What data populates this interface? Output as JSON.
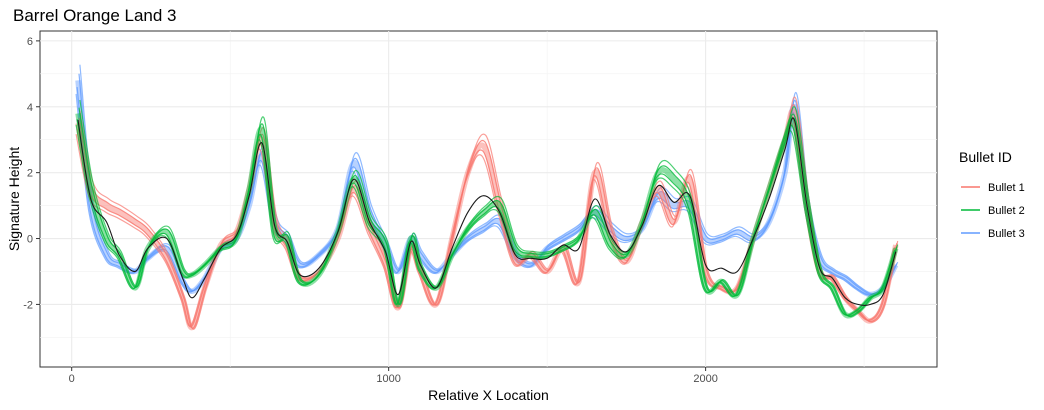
{
  "chart_data": {
    "type": "line",
    "title": "Barrel Orange Land 3",
    "xlabel": "Relative X Location",
    "ylabel": "Signature Height",
    "xlim": [
      -100,
      2730
    ],
    "ylim": [
      -3.9,
      6.3
    ],
    "x_ticks": [
      0,
      1000,
      2000
    ],
    "x_tick_labels": [
      "0",
      "1000",
      "2000"
    ],
    "y_ticks": [
      -2,
      0,
      2,
      4,
      6
    ],
    "y_tick_labels": [
      "-2",
      "0",
      "2",
      "4",
      "6"
    ],
    "grid": true,
    "legend": {
      "title": "Bullet ID",
      "position": "right"
    },
    "series": [
      {
        "name": "Bullet 1",
        "color": "#F8766D",
        "x": [
          20,
          60,
          110,
          150,
          200,
          240,
          300,
          350,
          380,
          420,
          470,
          520,
          560,
          600,
          640,
          680,
          720,
          780,
          840,
          890,
          940,
          990,
          1030,
          1070,
          1100,
          1150,
          1200,
          1250,
          1300,
          1350,
          1400,
          1450,
          1500,
          1550,
          1600,
          1650,
          1700,
          1750,
          1800,
          1850,
          1900,
          1950,
          2000,
          2050,
          2100,
          2150,
          2200,
          2250,
          2280,
          2320,
          2360,
          2400,
          2440,
          2480,
          2520,
          2560,
          2600
        ],
        "values": [
          3.5,
          1.5,
          1.0,
          0.8,
          0.5,
          0.2,
          -0.6,
          -1.8,
          -2.7,
          -1.5,
          -0.2,
          0.2,
          1.5,
          3.0,
          0.5,
          -0.2,
          -1.2,
          -1.0,
          0.0,
          1.5,
          0.3,
          -0.8,
          -2.1,
          -0.3,
          -1.0,
          -2.0,
          0.0,
          2.0,
          2.8,
          1.0,
          -0.7,
          -0.5,
          -1.0,
          -0.3,
          -1.3,
          2.0,
          0.2,
          -0.7,
          0.5,
          1.5,
          0.5,
          1.8,
          -1.0,
          -1.5,
          -1.5,
          0.0,
          1.5,
          3.0,
          3.8,
          1.0,
          -1.0,
          -1.2,
          -1.8,
          -2.2,
          -2.5,
          -2.0,
          -0.2
        ]
      },
      {
        "name": "Bullet 2",
        "color": "#00BA38",
        "x": [
          20,
          60,
          110,
          150,
          200,
          240,
          300,
          350,
          380,
          420,
          470,
          520,
          560,
          600,
          640,
          680,
          720,
          780,
          840,
          890,
          940,
          990,
          1030,
          1070,
          1100,
          1150,
          1200,
          1250,
          1300,
          1350,
          1400,
          1450,
          1500,
          1550,
          1600,
          1650,
          1700,
          1750,
          1800,
          1850,
          1900,
          1950,
          2000,
          2050,
          2100,
          2150,
          2200,
          2250,
          2280,
          2320,
          2360,
          2400,
          2440,
          2480,
          2520,
          2560,
          2600
        ],
        "values": [
          3.8,
          1.5,
          0.0,
          -0.5,
          -1.5,
          -0.3,
          0.2,
          -1.0,
          -1.1,
          -0.8,
          -0.3,
          0.0,
          1.5,
          3.3,
          0.2,
          0.0,
          -1.3,
          -1.1,
          0.2,
          1.8,
          0.5,
          -0.2,
          -2.0,
          0.0,
          -0.9,
          -1.5,
          -0.5,
          0.3,
          0.8,
          1.0,
          -0.3,
          -0.5,
          -0.5,
          -0.3,
          0.0,
          0.8,
          -0.2,
          -0.5,
          0.5,
          2.0,
          1.8,
          1.0,
          -1.5,
          -1.3,
          -1.7,
          0.0,
          1.5,
          3.0,
          3.5,
          1.0,
          -1.0,
          -1.5,
          -2.3,
          -2.2,
          -1.8,
          -1.5,
          -0.3
        ]
      },
      {
        "name": "Bullet 3",
        "color": "#619CFF",
        "x": [
          20,
          60,
          110,
          150,
          200,
          240,
          300,
          350,
          380,
          420,
          470,
          520,
          560,
          600,
          640,
          680,
          720,
          780,
          840,
          890,
          940,
          990,
          1030,
          1070,
          1100,
          1150,
          1200,
          1250,
          1300,
          1350,
          1400,
          1450,
          1500,
          1550,
          1600,
          1650,
          1700,
          1750,
          1800,
          1850,
          1900,
          1950,
          2000,
          2050,
          2100,
          2150,
          2200,
          2250,
          2280,
          2320,
          2360,
          2400,
          2440,
          2480,
          2520,
          2560,
          2600
        ],
        "values": [
          4.8,
          1.0,
          -0.5,
          -0.8,
          -1.0,
          -0.6,
          -0.3,
          -1.3,
          -1.6,
          -1.2,
          -0.3,
          0.0,
          1.0,
          2.5,
          0.5,
          0.0,
          -0.8,
          -0.5,
          0.3,
          2.3,
          0.8,
          -0.2,
          -1.0,
          0.0,
          -0.5,
          -1.0,
          -0.5,
          0.0,
          0.3,
          0.5,
          -0.5,
          -0.8,
          -0.3,
          0.0,
          0.3,
          0.8,
          0.3,
          0.0,
          0.3,
          1.3,
          1.0,
          1.0,
          0.0,
          0.0,
          0.2,
          0.0,
          0.5,
          2.0,
          4.0,
          1.0,
          -0.6,
          -1.0,
          -1.2,
          -1.5,
          -1.7,
          -1.5,
          -0.8
        ]
      }
    ],
    "summary_line": {
      "color": "#1a1a1a",
      "x": [
        20,
        60,
        110,
        150,
        200,
        240,
        300,
        350,
        380,
        420,
        470,
        520,
        560,
        600,
        640,
        680,
        720,
        780,
        840,
        890,
        940,
        990,
        1030,
        1070,
        1100,
        1150,
        1200,
        1250,
        1300,
        1350,
        1400,
        1450,
        1500,
        1550,
        1600,
        1650,
        1700,
        1750,
        1800,
        1850,
        1900,
        1950,
        2000,
        2050,
        2100,
        2150,
        2200,
        2250,
        2280,
        2320,
        2360,
        2400,
        2440,
        2480,
        2520,
        2560,
        2600
      ],
      "values": [
        3.6,
        1.2,
        0.5,
        -0.5,
        -1.0,
        -0.3,
        0.0,
        -1.2,
        -1.8,
        -1.2,
        -0.3,
        0.1,
        1.3,
        2.9,
        0.4,
        -0.1,
        -1.1,
        -0.9,
        0.2,
        1.8,
        0.5,
        -0.4,
        -1.7,
        -0.1,
        -0.8,
        -1.5,
        -0.3,
        0.8,
        1.3,
        0.8,
        -0.5,
        -0.6,
        -0.6,
        -0.2,
        -0.3,
        1.2,
        0.1,
        -0.4,
        0.4,
        1.6,
        1.1,
        1.3,
        -0.8,
        -0.9,
        -1.0,
        0.0,
        1.2,
        2.7,
        3.6,
        1.0,
        -0.9,
        -1.2,
        -1.8,
        -2.0,
        -2.0,
        -1.7,
        -0.4
      ]
    }
  }
}
